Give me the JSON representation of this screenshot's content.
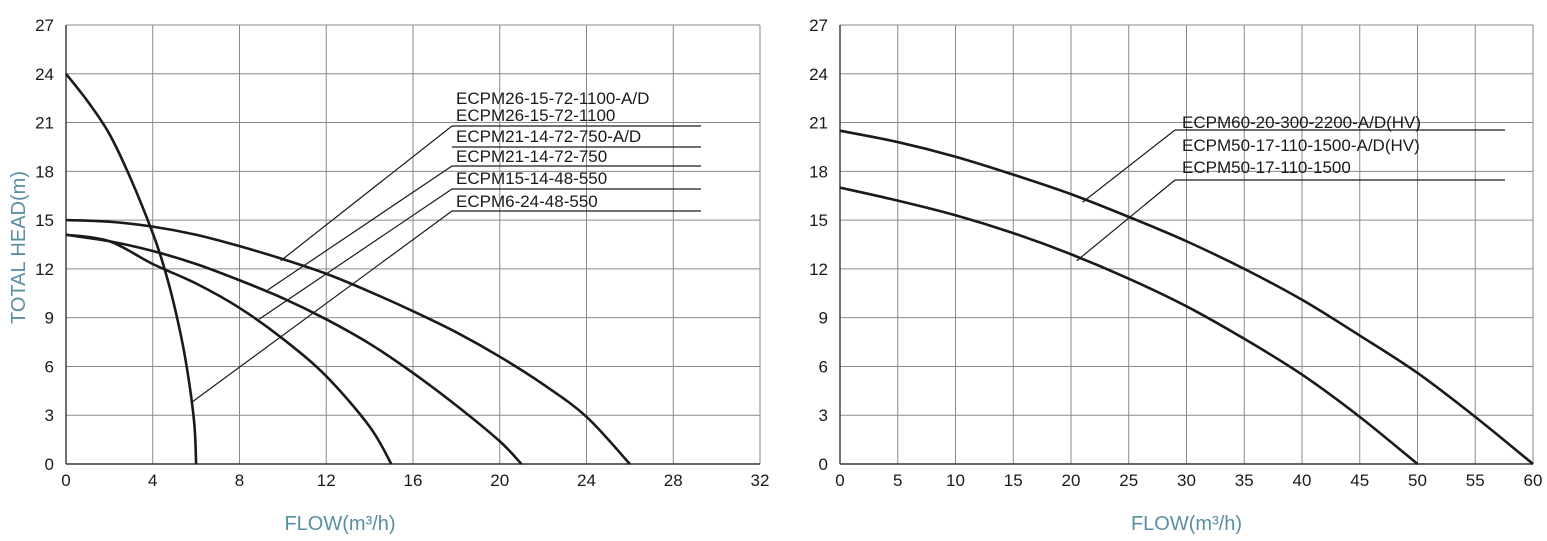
{
  "colors": {
    "axis_title": "#5a8fa3",
    "line": "#1a1a1a",
    "grid": "#8a8a8a",
    "text": "#1a1a1a"
  },
  "chart_data": [
    {
      "type": "line",
      "xlabel": "FLOW(m³/h)",
      "ylabel": "TOTAL HEAD(m)",
      "xlim": [
        0,
        32
      ],
      "ylim": [
        0,
        27
      ],
      "xticks": [
        0,
        4,
        8,
        12,
        16,
        20,
        24,
        28,
        32
      ],
      "yticks": [
        0,
        3,
        6,
        9,
        12,
        15,
        18,
        21,
        24,
        27
      ],
      "grid": true,
      "series": [
        {
          "x": [
            0,
            1,
            2,
            3,
            4,
            4.5,
            5,
            5.5,
            5.9,
            6
          ],
          "y": [
            24,
            22.3,
            20.3,
            17.5,
            14.2,
            12.2,
            9.7,
            6.5,
            2.7,
            0
          ]
        },
        {
          "x": [
            0,
            2,
            4,
            6,
            8,
            10,
            12,
            14,
            15
          ],
          "y": [
            14.1,
            13.7,
            12.3,
            11.1,
            9.6,
            7.7,
            5.4,
            2.3,
            0
          ]
        },
        {
          "x": [
            0,
            2,
            4,
            6,
            8,
            10,
            12,
            14,
            16,
            18,
            20,
            21
          ],
          "y": [
            14.1,
            13.7,
            13.1,
            12.3,
            11.3,
            10.2,
            8.9,
            7.4,
            5.6,
            3.6,
            1.4,
            0
          ]
        },
        {
          "x": [
            0,
            2,
            4,
            6,
            8,
            10,
            12,
            14,
            16,
            18,
            20,
            22,
            24,
            26
          ],
          "y": [
            15,
            14.9,
            14.6,
            14.1,
            13.4,
            12.6,
            11.7,
            10.6,
            9.4,
            8.1,
            6.6,
            4.9,
            2.9,
            0
          ]
        }
      ],
      "legend": [
        "ECPM26-15-72-1100-A/D",
        "ECPM26-15-72-1100",
        "ECPM21-14-72-750-A/D",
        "ECPM21-14-72-750",
        "ECPM15-14-48-550",
        "ECPM6-24-48-550"
      ],
      "legend_placement": "top-right"
    },
    {
      "type": "line",
      "xlabel": "FLOW(m³/h)",
      "ylabel": "",
      "xlim": [
        0,
        60
      ],
      "ylim": [
        0,
        27
      ],
      "xticks": [
        0,
        5,
        10,
        15,
        20,
        25,
        30,
        35,
        40,
        45,
        50,
        55,
        60
      ],
      "yticks": [
        0,
        3,
        6,
        9,
        12,
        15,
        18,
        21,
        24,
        27
      ],
      "grid": true,
      "series": [
        {
          "x": [
            0,
            5,
            10,
            15,
            20,
            25,
            30,
            35,
            40,
            45,
            50,
            55,
            60
          ],
          "y": [
            20.5,
            19.8,
            18.9,
            17.8,
            16.6,
            15.2,
            13.7,
            12,
            10.1,
            7.9,
            5.6,
            2.9,
            0
          ]
        },
        {
          "x": [
            0,
            5,
            10,
            15,
            20,
            25,
            30,
            35,
            40,
            45,
            50
          ],
          "y": [
            17,
            16.2,
            15.3,
            14.2,
            12.9,
            11.4,
            9.7,
            7.7,
            5.5,
            2.9,
            0
          ]
        }
      ],
      "legend": [
        "ECPM60-20-300-2200-A/D(HV)",
        "ECPM50-17-110-1500-A/D(HV)",
        "ECPM50-17-110-1500"
      ],
      "legend_placement": "top-right"
    }
  ]
}
